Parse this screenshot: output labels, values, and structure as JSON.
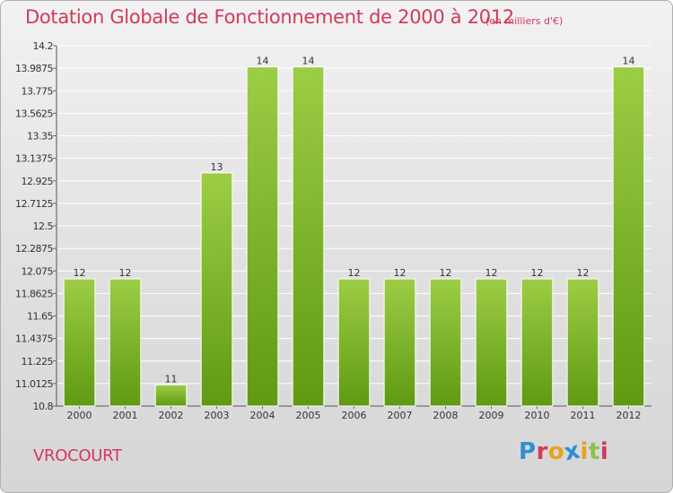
{
  "header": {
    "title": "Dotation Globale de Fonctionnement de 2000 à 2012",
    "subtitle": "(en milliers d'€)"
  },
  "footer": {
    "commune": "VROCOURT",
    "logo_text": "Proxiti",
    "logo_colors": [
      "#2f8fd2",
      "#d4395b",
      "#e8a31c",
      "#2f8fd2",
      "#e8a31c",
      "#8bc34a",
      "#d4395b"
    ]
  },
  "colors": {
    "bar_light": "#9ccd45",
    "bar_dark": "#5f9a12",
    "title": "#d4395b",
    "grid": "#ffffff",
    "text": "#333333"
  },
  "chart_data": {
    "type": "bar",
    "categories": [
      "2000",
      "2001",
      "2002",
      "2003",
      "2004",
      "2005",
      "2006",
      "2007",
      "2008",
      "2009",
      "2010",
      "2011",
      "2012"
    ],
    "values": [
      12,
      12,
      11,
      13,
      14,
      14,
      12,
      12,
      12,
      12,
      12,
      12,
      14
    ],
    "data_labels": [
      "12",
      "12",
      "11",
      "13",
      "14",
      "14",
      "12",
      "12",
      "12",
      "12",
      "12",
      "12",
      "14"
    ],
    "title": "Dotation Globale de Fonctionnement de 2000 à 2012",
    "xlabel": "",
    "ylabel": "",
    "ylim": [
      10.8,
      14.2
    ],
    "yticks": [
      10.8,
      11.0125,
      11.225,
      11.4375,
      11.65,
      11.8625,
      12.075,
      12.2875,
      12.5,
      12.7125,
      12.925,
      13.1375,
      13.35,
      13.5625,
      13.775,
      13.9875,
      14.2
    ],
    "ytick_labels": [
      "10.8",
      "11.0125",
      "11.225",
      "11.4375",
      "11.65",
      "11.8625",
      "12.075",
      "12.2875",
      "12.5",
      "12.7125",
      "12.925",
      "13.1375",
      "13.35",
      "13.5625",
      "13.775",
      "13.9875",
      "14.2"
    ],
    "grid": true,
    "legend": "none"
  }
}
